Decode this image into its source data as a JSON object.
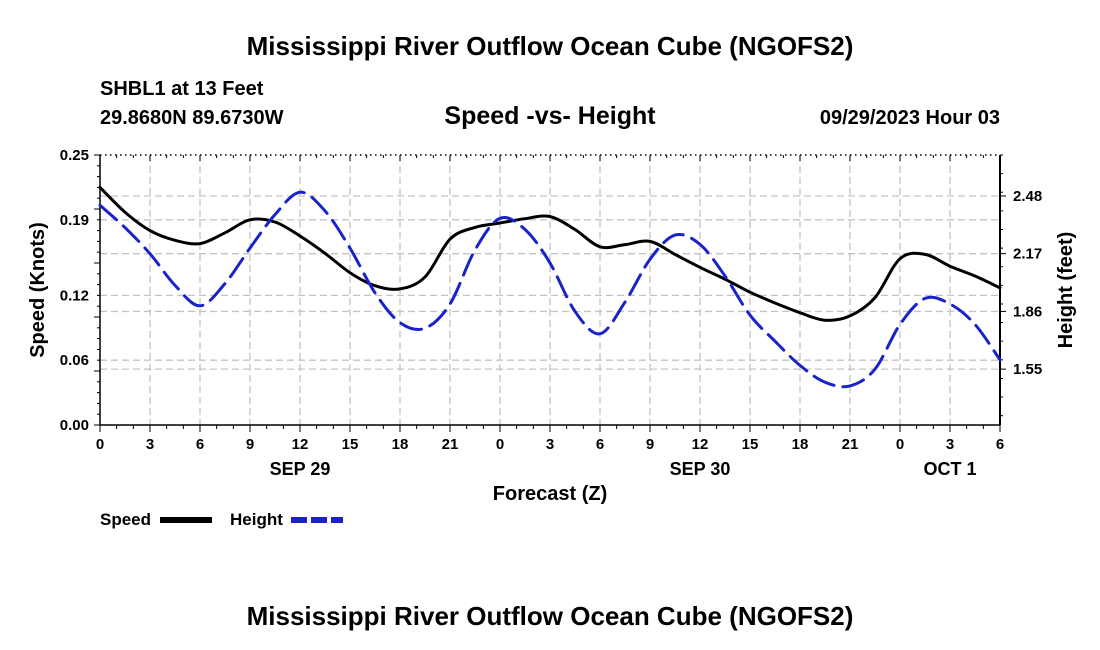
{
  "page": {
    "title": "Mississippi River Outflow Ocean Cube (NGOFS2)",
    "station": "SHBL1 at 13 Feet",
    "coords": "29.8680N  89.6730W",
    "datetime": "09/29/2023 Hour 03",
    "footer_title": "Mississippi River Outflow Ocean Cube (NGOFS2)"
  },
  "chart_data": {
    "type": "line",
    "title": "Speed -vs- Height",
    "xlabel": "Forecast (Z)",
    "ylabel": "Speed (Knots)",
    "y2label": "Height (feet)",
    "xlim": [
      0,
      54
    ],
    "ylim": [
      0,
      0.25
    ],
    "y2lim": [
      1.25,
      2.7
    ],
    "x_ticks": [
      0,
      3,
      6,
      9,
      12,
      15,
      18,
      21,
      24,
      27,
      30,
      33,
      36,
      39,
      42,
      45,
      48,
      51,
      54
    ],
    "x_tick_labels": [
      "0",
      "3",
      "6",
      "9",
      "12",
      "15",
      "18",
      "21",
      "0",
      "3",
      "6",
      "9",
      "12",
      "15",
      "18",
      "21",
      "0",
      "3",
      "6"
    ],
    "y_ticks": [
      0.0,
      0.06,
      0.12,
      0.19,
      0.25
    ],
    "y_tick_labels": [
      "0.00",
      "0.06",
      "0.12",
      "0.19",
      "0.25"
    ],
    "y2_ticks": [
      1.55,
      1.86,
      2.17,
      2.48
    ],
    "y2_tick_labels": [
      "1.55",
      "1.86",
      "2.17",
      "2.48"
    ],
    "date_labels": [
      {
        "label": "SEP 29",
        "x": 12
      },
      {
        "label": "SEP 30",
        "x": 36
      },
      {
        "label": "OCT 1",
        "x": 51
      }
    ],
    "grid": true,
    "legend": [
      "Speed",
      "Height"
    ],
    "series": [
      {
        "name": "Speed",
        "axis": "left",
        "color": "#000000",
        "dash": "solid",
        "x": [
          0,
          1.5,
          3,
          4.5,
          6,
          7.5,
          9,
          10.5,
          12,
          13.5,
          15,
          16.5,
          18,
          19.5,
          21,
          22.5,
          24,
          25.5,
          27,
          28.5,
          30,
          31.5,
          33,
          34.5,
          36,
          37.5,
          39,
          40.5,
          42,
          43.5,
          45,
          46.5,
          48,
          49.5,
          51,
          52.5,
          54
        ],
        "values": [
          0.22,
          0.197,
          0.18,
          0.171,
          0.168,
          0.178,
          0.19,
          0.188,
          0.175,
          0.159,
          0.141,
          0.129,
          0.126,
          0.137,
          0.172,
          0.183,
          0.187,
          0.191,
          0.193,
          0.181,
          0.165,
          0.167,
          0.17,
          0.158,
          0.146,
          0.135,
          0.123,
          0.113,
          0.104,
          0.097,
          0.101,
          0.118,
          0.154,
          0.158,
          0.147,
          0.138,
          0.127
        ]
      },
      {
        "name": "Height",
        "axis": "right",
        "color": "#1a23c8",
        "dash": "dashed",
        "x": [
          0,
          1.5,
          3,
          4.5,
          6,
          7.5,
          9,
          10.5,
          12,
          13.5,
          15,
          16.5,
          18,
          19.5,
          21,
          22.5,
          24,
          25.5,
          27,
          28.5,
          30,
          31.5,
          33,
          34.5,
          36,
          37.5,
          39,
          40.5,
          42,
          43.5,
          45,
          46.5,
          48,
          49.5,
          51,
          52.5,
          54
        ],
        "values": [
          2.43,
          2.31,
          2.17,
          2.0,
          1.89,
          2.01,
          2.2,
          2.38,
          2.5,
          2.4,
          2.2,
          1.96,
          1.8,
          1.77,
          1.9,
          2.19,
          2.36,
          2.3,
          2.12,
          1.86,
          1.74,
          1.91,
          2.14,
          2.27,
          2.22,
          2.05,
          1.84,
          1.7,
          1.57,
          1.48,
          1.46,
          1.55,
          1.79,
          1.93,
          1.9,
          1.79,
          1.6
        ]
      }
    ]
  }
}
